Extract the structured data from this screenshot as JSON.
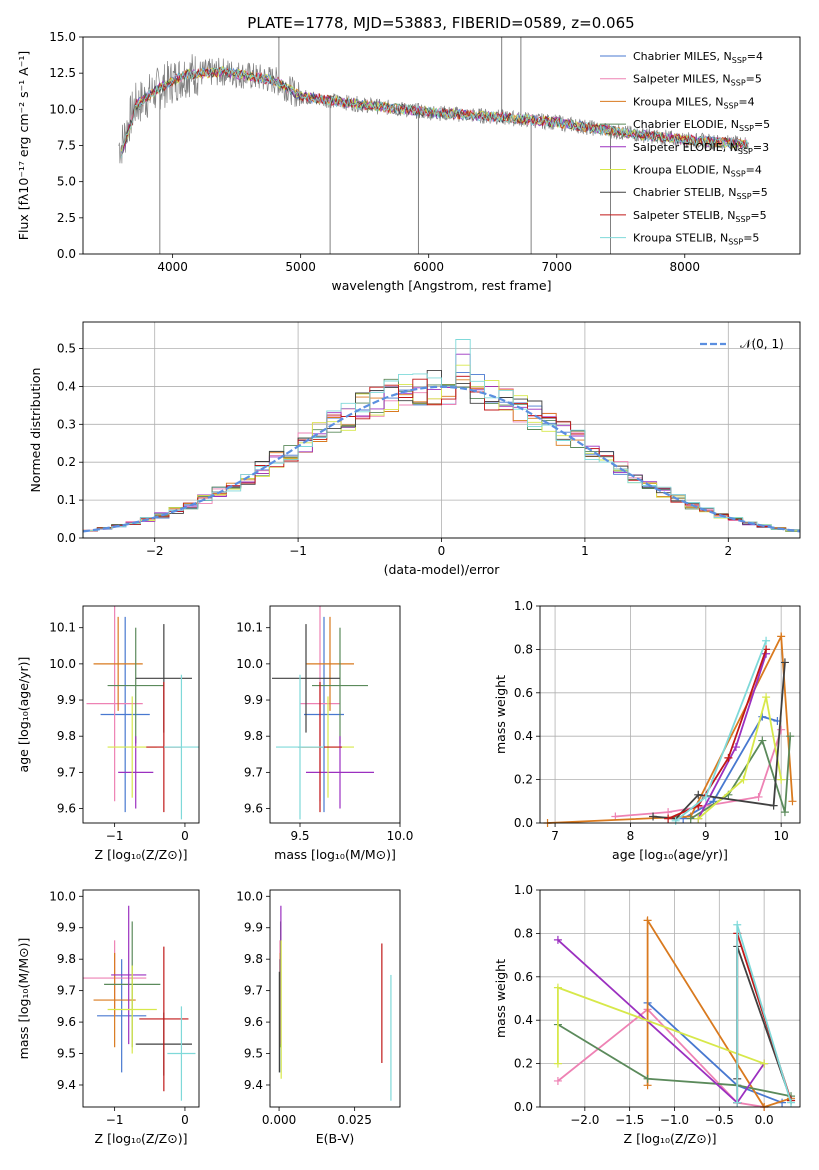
{
  "figure_title": "PLATE=1778, MJD=53883, FIBERID=0589, z=0.065",
  "colors": {
    "Chabrier MILES": "#4878d0",
    "Salpeter MILES": "#ee82b4",
    "Kroupa MILES": "#d97a1f",
    "Chabrier ELODIE": "#5b8a5b",
    "Salpeter ELODIE": "#9b30c0",
    "Kroupa ELODIE": "#d7e84a",
    "Chabrier STELIB": "#404040",
    "Salpeter STELIB": "#c01818",
    "Kroupa STELIB": "#7fd9d9",
    "data": "#808080",
    "normal": "#5b8fe0"
  },
  "chart_data": [
    {
      "type": "line",
      "id": "spectrum",
      "title": "PLATE=1778, MJD=53883, FIBERID=0589, z=0.065",
      "xlabel": "wavelength [Angstrom, rest frame]",
      "ylabel": "Flux [fλ10⁻¹⁷ erg cm⁻² s⁻¹ A⁻¹]",
      "xlim": [
        3300,
        8900
      ],
      "ylim": [
        0,
        15
      ],
      "xticks": [
        4000,
        5000,
        6000,
        7000,
        8000
      ],
      "yticks": [
        0.0,
        2.5,
        5.0,
        7.5,
        10.0,
        12.5,
        15.0
      ],
      "grid": false,
      "legend_position": "top-right",
      "continuum_anchors": [
        [
          3600,
          7.5
        ],
        [
          3700,
          10.2
        ],
        [
          3900,
          11.5
        ],
        [
          4100,
          12.4
        ],
        [
          4400,
          12.6
        ],
        [
          4800,
          12.0
        ],
        [
          5000,
          10.9
        ],
        [
          5500,
          10.3
        ],
        [
          6000,
          9.8
        ],
        [
          6500,
          9.5
        ],
        [
          7000,
          9.1
        ],
        [
          7500,
          8.4
        ],
        [
          8000,
          7.9
        ],
        [
          8500,
          7.6
        ]
      ],
      "data_spikes": [
        [
          3900,
          0
        ],
        [
          4830,
          15
        ],
        [
          5230,
          0
        ],
        [
          5920,
          0
        ],
        [
          6570,
          15
        ],
        [
          6720,
          15
        ],
        [
          6800,
          0
        ],
        [
          7420,
          0
        ]
      ],
      "series": [
        {
          "name": "Chabrier MILES, N_SSP=4",
          "name_main": "Chabrier MILES, N",
          "name_sub": "SSP",
          "name_tail": "=4"
        },
        {
          "name": "Salpeter MILES, N_SSP=5",
          "name_main": "Salpeter MILES, N",
          "name_sub": "SSP",
          "name_tail": "=5"
        },
        {
          "name": "Kroupa MILES, N_SSP=4",
          "name_main": "Kroupa MILES, N",
          "name_sub": "SSP",
          "name_tail": "=4"
        },
        {
          "name": "Chabrier ELODIE, N_SSP=5",
          "name_main": "Chabrier ELODIE, N",
          "name_sub": "SSP",
          "name_tail": "=5"
        },
        {
          "name": "Salpeter ELODIE, N_SSP=3",
          "name_main": "Salpeter ELODIE, N",
          "name_sub": "SSP",
          "name_tail": "=3"
        },
        {
          "name": "Kroupa ELODIE, N_SSP=4",
          "name_main": "Kroupa ELODIE, N",
          "name_sub": "SSP",
          "name_tail": "=4"
        },
        {
          "name": "Chabrier STELIB, N_SSP=5",
          "name_main": "Chabrier STELIB, N",
          "name_sub": "SSP",
          "name_tail": "=5"
        },
        {
          "name": "Salpeter STELIB, N_SSP=5",
          "name_main": "Salpeter STELIB, N",
          "name_sub": "SSP",
          "name_tail": "=5"
        },
        {
          "name": "Kroupa STELIB, N_SSP=5",
          "name_main": "Kroupa STELIB, N",
          "name_sub": "SSP",
          "name_tail": "=5"
        }
      ]
    },
    {
      "type": "histogram",
      "id": "residuals",
      "xlabel": "(data-model)/error",
      "ylabel": "Normed distribution",
      "xlim": [
        -2.5,
        2.5
      ],
      "ylim": [
        0,
        0.57
      ],
      "xticks": [
        -2,
        -1,
        0,
        1,
        2
      ],
      "yticks": [
        0.0,
        0.1,
        0.2,
        0.3,
        0.4,
        0.5
      ],
      "grid": true,
      "legend": "𝒩(0, 1)",
      "legend_position": "top-right",
      "bin_width": 0.1,
      "bin_start": -2.5,
      "reference_curve": "standard normal density",
      "hist_peaks": [
        0.45,
        0.44,
        0.43,
        0.41,
        0.5,
        0.47,
        0.42,
        0.44,
        0.54
      ]
    },
    {
      "type": "scatter",
      "id": "age_vs_Z",
      "xlabel": "Z [log₁₀(Z/Z⊙)]",
      "ylabel": "age  [log₁₀(age/yr)]",
      "xlim": [
        -1.45,
        0.2
      ],
      "ylim": [
        9.56,
        10.16
      ],
      "xticks": [
        -1,
        0
      ],
      "yticks": [
        9.6,
        9.7,
        9.8,
        9.9,
        10.0,
        10.1
      ],
      "points": [
        {
          "model": "Chabrier MILES",
          "x": -0.85,
          "y": 9.86,
          "xerr": 0.35,
          "yerr": 0.27
        },
        {
          "model": "Salpeter MILES",
          "x": -1.0,
          "y": 9.89,
          "xerr": 0.4,
          "yerr": 0.27
        },
        {
          "model": "Kroupa MILES",
          "x": -0.95,
          "y": 10.0,
          "xerr": 0.35,
          "yerr": 0.13
        },
        {
          "model": "Chabrier ELODIE",
          "x": -0.7,
          "y": 9.94,
          "xerr": 0.4,
          "yerr": 0.16
        },
        {
          "model": "Salpeter ELODIE",
          "x": -0.7,
          "y": 9.7,
          "xerr": 0.25,
          "yerr": 0.1
        },
        {
          "model": "Kroupa ELODIE",
          "x": -0.75,
          "y": 9.77,
          "xerr": 0.35,
          "yerr": 0.14
        },
        {
          "model": "Chabrier STELIB",
          "x": -0.3,
          "y": 9.96,
          "xerr": 0.4,
          "yerr": 0.15
        },
        {
          "model": "Salpeter STELIB",
          "x": -0.3,
          "y": 9.77,
          "xerr": 0.25,
          "yerr": 0.18
        },
        {
          "model": "Kroupa STELIB",
          "x": -0.05,
          "y": 9.77,
          "xerr": 0.25,
          "yerr": 0.2
        }
      ]
    },
    {
      "type": "scatter",
      "id": "age_vs_mass",
      "xlabel": "mass [log₁₀(M/M⊙)]",
      "ylabel": "",
      "xlim": [
        9.35,
        10.0
      ],
      "ylim": [
        9.56,
        10.16
      ],
      "xticks": [
        9.5,
        10.0
      ],
      "yticks": [
        9.6,
        9.7,
        9.8,
        9.9,
        10.0,
        10.1
      ],
      "points": [
        {
          "model": "Chabrier MILES",
          "x": 9.62,
          "y": 9.86,
          "xerr": 0.1,
          "yerr": 0.27
        },
        {
          "model": "Salpeter MILES",
          "x": 9.6,
          "y": 9.89,
          "xerr": 0.1,
          "yerr": 0.27
        },
        {
          "model": "Kroupa MILES",
          "x": 9.65,
          "y": 10.0,
          "xerr": 0.12,
          "yerr": 0.13
        },
        {
          "model": "Chabrier ELODIE",
          "x": 9.7,
          "y": 9.94,
          "xerr": 0.14,
          "yerr": 0.16
        },
        {
          "model": "Salpeter ELODIE",
          "x": 9.7,
          "y": 9.7,
          "xerr": 0.17,
          "yerr": 0.1
        },
        {
          "model": "Kroupa ELODIE",
          "x": 9.64,
          "y": 9.77,
          "xerr": 0.13,
          "yerr": 0.14
        },
        {
          "model": "Chabrier STELIB",
          "x": 9.53,
          "y": 9.96,
          "xerr": 0.17,
          "yerr": 0.15
        },
        {
          "model": "Salpeter STELIB",
          "x": 9.6,
          "y": 9.77,
          "xerr": 0.11,
          "yerr": 0.18
        },
        {
          "model": "Kroupa STELIB",
          "x": 9.5,
          "y": 9.77,
          "xerr": 0.12,
          "yerr": 0.2
        }
      ]
    },
    {
      "type": "line",
      "id": "mass_weight_vs_age",
      "xlabel": "age  [log₁₀(age/yr)]",
      "ylabel": "mass weight",
      "xlim": [
        6.8,
        10.25
      ],
      "ylim": [
        0,
        1.0
      ],
      "xticks": [
        7,
        8,
        9,
        10
      ],
      "yticks": [
        0.0,
        0.2,
        0.4,
        0.6,
        0.8,
        1.0
      ],
      "grid": true,
      "series": [
        {
          "model": "Chabrier MILES",
          "x": [
            8.7,
            9.1,
            9.75,
            9.95
          ],
          "y": [
            0.02,
            0.1,
            0.49,
            0.47
          ]
        },
        {
          "model": "Salpeter MILES",
          "x": [
            7.8,
            8.5,
            9.7,
            10.0
          ],
          "y": [
            0.03,
            0.05,
            0.12,
            0.43
          ]
        },
        {
          "model": "Kroupa MILES",
          "x": [
            6.9,
            8.8,
            10.0,
            10.15
          ],
          "y": [
            0.0,
            0.03,
            0.86,
            0.1
          ]
        },
        {
          "model": "Chabrier ELODIE",
          "x": [
            8.8,
            9.3,
            9.75,
            10.05,
            10.12
          ],
          "y": [
            0.02,
            0.13,
            0.38,
            0.05,
            0.4
          ]
        },
        {
          "model": "Salpeter ELODIE",
          "x": [
            8.9,
            9.4,
            9.8
          ],
          "y": [
            0.02,
            0.35,
            0.78
          ]
        },
        {
          "model": "Kroupa ELODIE",
          "x": [
            8.9,
            9.5,
            9.8,
            10.0
          ],
          "y": [
            0.02,
            0.2,
            0.58,
            0.2
          ]
        },
        {
          "model": "Chabrier STELIB",
          "x": [
            8.3,
            8.6,
            8.9,
            9.9,
            10.05
          ],
          "y": [
            0.03,
            0.02,
            0.13,
            0.08,
            0.74
          ]
        },
        {
          "model": "Salpeter STELIB",
          "x": [
            8.5,
            8.9,
            9.3,
            9.8
          ],
          "y": [
            0.02,
            0.08,
            0.3,
            0.8
          ]
        },
        {
          "model": "Kroupa STELIB",
          "x": [
            8.6,
            9.0,
            9.8
          ],
          "y": [
            0.01,
            0.12,
            0.84
          ]
        }
      ]
    },
    {
      "type": "scatter",
      "id": "mass_vs_Z",
      "xlabel": "Z [log₁₀(Z/Z⊙)]",
      "ylabel": "mass [log₁₀(M/M⊙)]",
      "xlim": [
        -1.45,
        0.2
      ],
      "ylim": [
        9.33,
        10.02
      ],
      "xticks": [
        -1,
        0
      ],
      "yticks": [
        9.4,
        9.5,
        9.6,
        9.7,
        9.8,
        9.9,
        10.0
      ],
      "points": [
        {
          "model": "Chabrier MILES",
          "x": -0.9,
          "y": 9.62,
          "xerr": 0.35,
          "yerr": 0.18
        },
        {
          "model": "Salpeter MILES",
          "x": -1.0,
          "y": 9.74,
          "xerr": 0.45,
          "yerr": 0.12
        },
        {
          "model": "Kroupa MILES",
          "x": -1.0,
          "y": 9.67,
          "xerr": 0.3,
          "yerr": 0.15
        },
        {
          "model": "Chabrier ELODIE",
          "x": -0.75,
          "y": 9.72,
          "xerr": 0.4,
          "yerr": 0.2
        },
        {
          "model": "Salpeter ELODIE",
          "x": -0.8,
          "y": 9.75,
          "xerr": 0.25,
          "yerr": 0.22
        },
        {
          "model": "Kroupa ELODIE",
          "x": -0.75,
          "y": 9.64,
          "xerr": 0.35,
          "yerr": 0.14
        },
        {
          "model": "Chabrier STELIB",
          "x": -0.3,
          "y": 9.53,
          "xerr": 0.4,
          "yerr": 0.1
        },
        {
          "model": "Salpeter STELIB",
          "x": -0.3,
          "y": 9.61,
          "xerr": 0.35,
          "yerr": 0.23
        },
        {
          "model": "Kroupa STELIB",
          "x": -0.05,
          "y": 9.5,
          "xerr": 0.2,
          "yerr": 0.15
        }
      ]
    },
    {
      "type": "scatter",
      "id": "mass_vs_EBV",
      "xlabel": "E(B-V)",
      "ylabel": "",
      "xlim": [
        -0.003,
        0.04
      ],
      "ylim": [
        9.33,
        10.02
      ],
      "xticks": [
        0.0,
        0.025
      ],
      "xticklabels": [
        "0.000",
        "0.025"
      ],
      "yticks": [
        9.4,
        9.5,
        9.6,
        9.7,
        9.8,
        9.9,
        10.0
      ],
      "points": [
        {
          "model": "Chabrier MILES",
          "x": 0.0002,
          "y": 9.62,
          "yerr": 0.18
        },
        {
          "model": "Salpeter MILES",
          "x": 0.0003,
          "y": 9.74,
          "yerr": 0.12
        },
        {
          "model": "Kroupa MILES",
          "x": 0.0004,
          "y": 9.67,
          "yerr": 0.15
        },
        {
          "model": "Chabrier ELODIE",
          "x": 0.0005,
          "y": 9.72,
          "yerr": 0.2
        },
        {
          "model": "Salpeter ELODIE",
          "x": 0.0006,
          "y": 9.75,
          "yerr": 0.22
        },
        {
          "model": "Kroupa ELODIE",
          "x": 0.0007,
          "y": 9.64,
          "yerr": 0.22
        },
        {
          "model": "Chabrier STELIB",
          "x": 0.0001,
          "y": 9.6,
          "yerr": 0.16
        },
        {
          "model": "Salpeter STELIB",
          "x": 0.034,
          "y": 9.66,
          "yerr": 0.19
        },
        {
          "model": "Kroupa STELIB",
          "x": 0.037,
          "y": 9.55,
          "yerr": 0.2
        }
      ]
    },
    {
      "type": "line",
      "id": "mass_weight_vs_Z",
      "xlabel": "Z [log₁₀(Z/Z⊙)]",
      "ylabel": "mass weight",
      "xlim": [
        -2.5,
        0.4
      ],
      "ylim": [
        0,
        1.0
      ],
      "xticks": [
        -2.0,
        -1.5,
        -1.0,
        -0.5,
        0.0
      ],
      "yticks": [
        0.0,
        0.2,
        0.4,
        0.6,
        0.8,
        1.0
      ],
      "grid": true,
      "series": [
        {
          "model": "Chabrier MILES",
          "x": [
            -1.3,
            -0.3,
            0.2
          ],
          "y": [
            0.48,
            0.1,
            0.02
          ]
        },
        {
          "model": "Salpeter MILES",
          "x": [
            -2.3,
            -1.3,
            -0.3,
            0.0
          ],
          "y": [
            0.12,
            0.45,
            0.02,
            0.0
          ]
        },
        {
          "model": "Kroupa MILES",
          "x": [
            -1.3,
            -1.3,
            0.0,
            0.3
          ],
          "y": [
            0.1,
            0.86,
            0.0,
            0.04
          ]
        },
        {
          "model": "Chabrier ELODIE",
          "x": [
            -2.3,
            -1.3,
            -0.3,
            0.3
          ],
          "y": [
            0.38,
            0.13,
            0.1,
            0.05
          ]
        },
        {
          "model": "Salpeter ELODIE",
          "x": [
            -2.3,
            -0.3,
            0.0
          ],
          "y": [
            0.77,
            0.02,
            0.2
          ]
        },
        {
          "model": "Kroupa ELODIE",
          "x": [
            -2.3,
            -2.3,
            0.0
          ],
          "y": [
            0.2,
            0.55,
            0.2
          ]
        },
        {
          "model": "Chabrier STELIB",
          "x": [
            -0.3,
            -0.3,
            0.3
          ],
          "y": [
            0.13,
            0.74,
            0.03
          ]
        },
        {
          "model": "Salpeter STELIB",
          "x": [
            -0.3,
            -0.3,
            0.3
          ],
          "y": [
            0.02,
            0.8,
            0.03
          ]
        },
        {
          "model": "Kroupa STELIB",
          "x": [
            -0.3,
            -0.3,
            0.3
          ],
          "y": [
            0.02,
            0.84,
            0.02
          ]
        }
      ]
    }
  ]
}
